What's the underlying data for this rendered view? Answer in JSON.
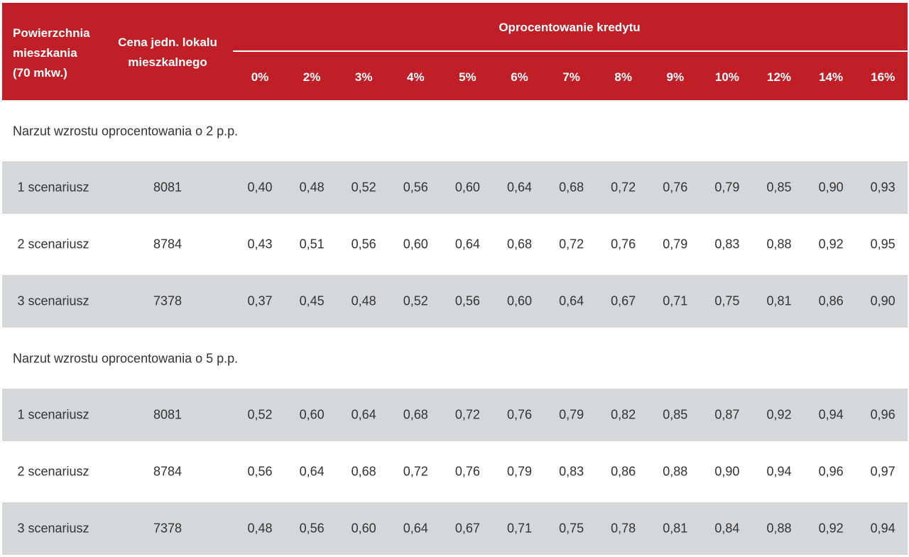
{
  "header": {
    "col1": [
      "Powierzchnia",
      "mieszkania",
      "(70 mkw.)"
    ],
    "col2": [
      "Cena jedn. lokalu",
      "mieszkalnego"
    ],
    "group": "Oprocentowanie kredytu",
    "rates": [
      "0%",
      "2%",
      "3%",
      "4%",
      "5%",
      "6%",
      "7%",
      "8%",
      "9%",
      "10%",
      "12%",
      "14%",
      "16%"
    ]
  },
  "sections": [
    {
      "title": "Narzut wzrostu oprocentowania o 2 p.p.",
      "rows": [
        {
          "label": "1 scenariusz",
          "price": "8081",
          "values": [
            "0,40",
            "0,48",
            "0,52",
            "0,56",
            "0,60",
            "0,64",
            "0,68",
            "0,72",
            "0,76",
            "0,79",
            "0,85",
            "0,90",
            "0,93"
          ]
        },
        {
          "label": "2 scenariusz",
          "price": "8784",
          "values": [
            "0,43",
            "0,51",
            "0,56",
            "0,60",
            "0,64",
            "0,68",
            "0,72",
            "0,76",
            "0,79",
            "0,83",
            "0,88",
            "0,92",
            "0,95"
          ]
        },
        {
          "label": "3 scenariusz",
          "price": "7378",
          "values": [
            "0,37",
            "0,45",
            "0,48",
            "0,52",
            "0,56",
            "0,60",
            "0,64",
            "0,67",
            "0,71",
            "0,75",
            "0,81",
            "0,86",
            "0,90"
          ]
        }
      ]
    },
    {
      "title": "Narzut wzrostu oprocentowania o 5 p.p.",
      "rows": [
        {
          "label": "1 scenariusz",
          "price": "8081",
          "values": [
            "0,52",
            "0,60",
            "0,64",
            "0,68",
            "0,72",
            "0,76",
            "0,79",
            "0,82",
            "0,85",
            "0,87",
            "0,92",
            "0,94",
            "0,96"
          ]
        },
        {
          "label": "2 scenariusz",
          "price": "8784",
          "values": [
            "0,56",
            "0,64",
            "0,68",
            "0,72",
            "0,76",
            "0,79",
            "0,83",
            "0,86",
            "0,88",
            "0,90",
            "0,94",
            "0,96",
            "0,97"
          ]
        },
        {
          "label": "3 scenariusz",
          "price": "7378",
          "values": [
            "0,48",
            "0,56",
            "0,60",
            "0,64",
            "0,67",
            "0,71",
            "0,75",
            "0,78",
            "0,81",
            "0,84",
            "0,88",
            "0,92",
            "0,94"
          ]
        }
      ]
    }
  ]
}
